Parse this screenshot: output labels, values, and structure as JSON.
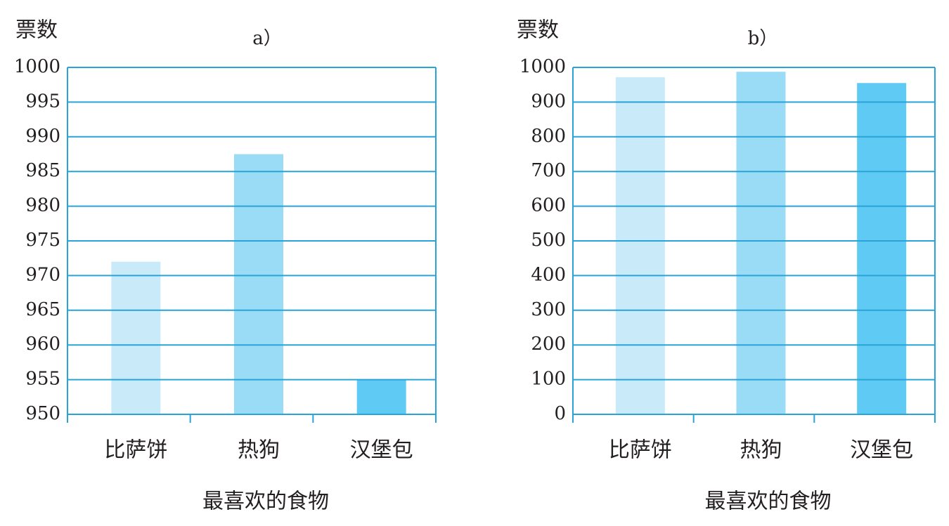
{
  "chart_data": [
    {
      "type": "bar",
      "title": "a）",
      "y_label": "票数",
      "x_label": "最喜欢的食物",
      "categories": [
        "比萨饼",
        "热狗",
        "汉堡包"
      ],
      "values": [
        972,
        987.5,
        955
      ],
      "colors": [
        "#c9ebf9",
        "#9adcf6",
        "#5fcbf5"
      ],
      "ylim": [
        950,
        1000
      ],
      "yticks": [
        950,
        955,
        960,
        965,
        970,
        975,
        980,
        985,
        990,
        995,
        1000
      ],
      "grid": true
    },
    {
      "type": "bar",
      "title": "b）",
      "y_label": "票数",
      "x_label": "最喜欢的食物",
      "categories": [
        "比萨饼",
        "热狗",
        "汉堡包"
      ],
      "values": [
        972,
        987.5,
        955
      ],
      "colors": [
        "#c9ebf9",
        "#9adcf6",
        "#5fcbf5"
      ],
      "ylim": [
        0,
        1000
      ],
      "yticks": [
        0,
        100,
        200,
        300,
        400,
        500,
        600,
        700,
        800,
        900,
        1000
      ],
      "grid": true
    }
  ]
}
